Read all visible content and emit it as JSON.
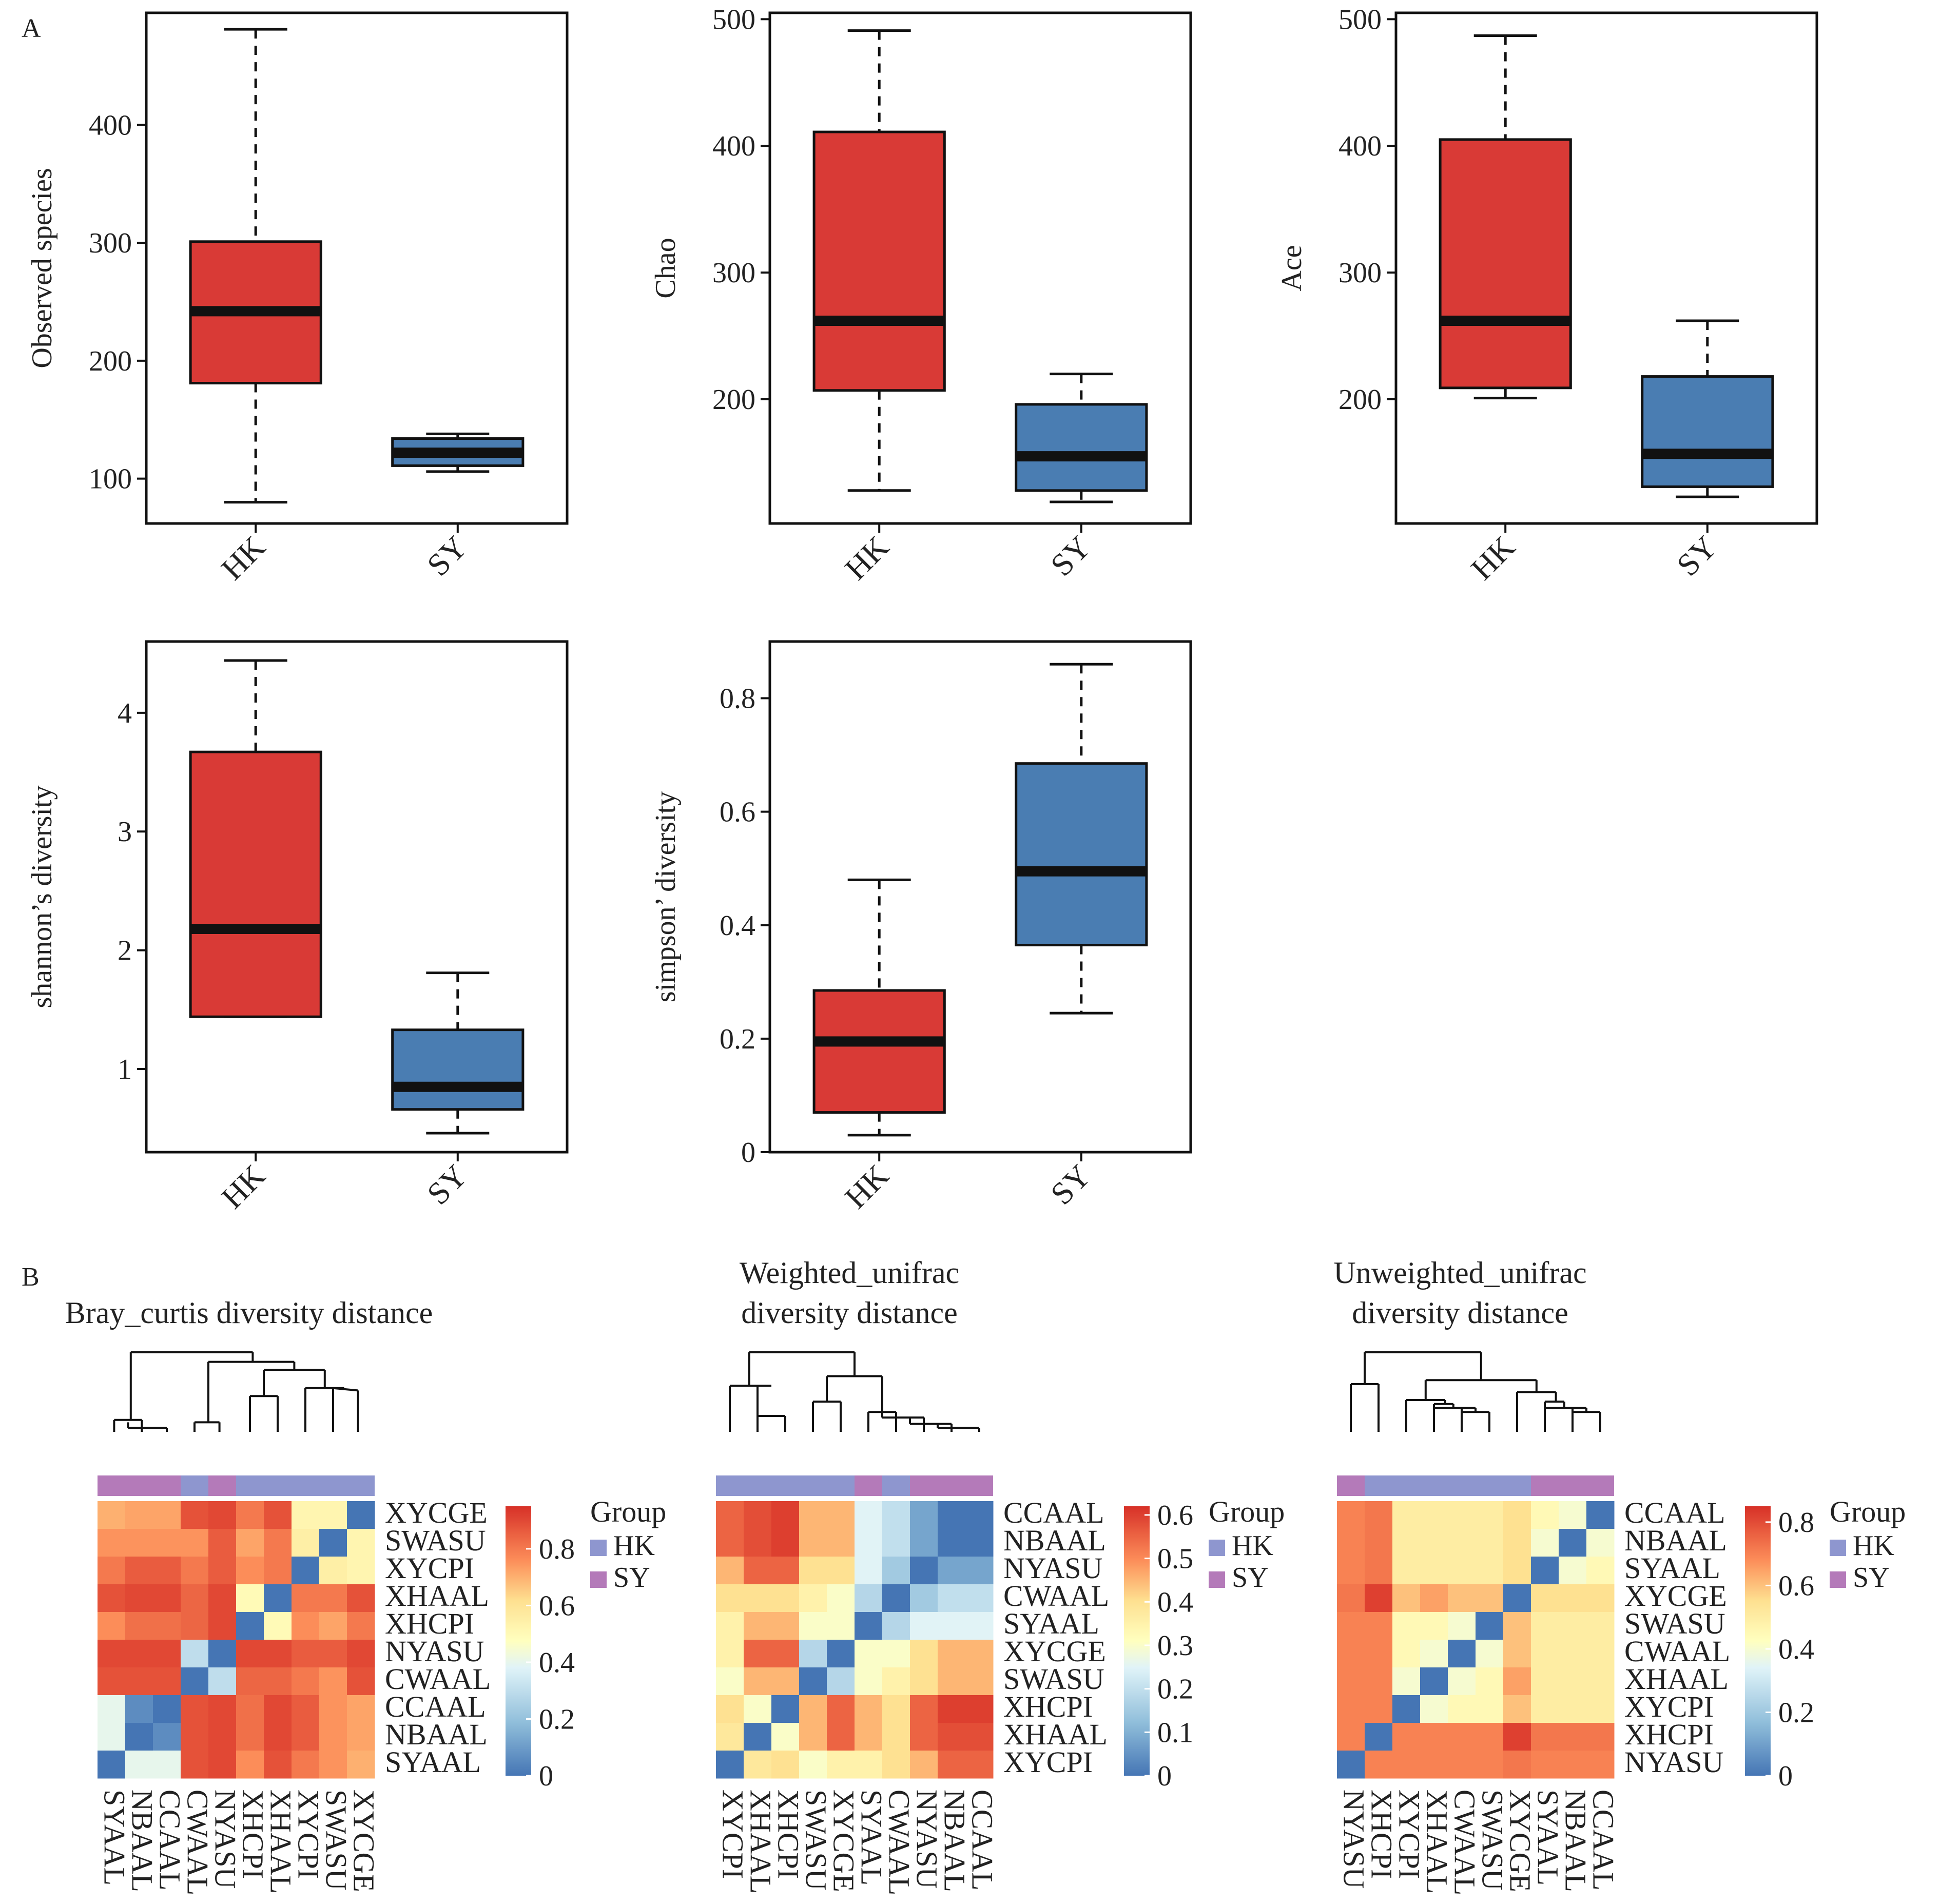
{
  "panels": {
    "A": "A",
    "B": "B"
  },
  "colors": {
    "HK_box": "#d93a36",
    "SY_box": "#4a7db2",
    "group_HK": "#8e96cf",
    "group_SY": "#b47ab9",
    "heat_low": "#4575b4",
    "heat_mid": "#ffffbf",
    "heat_high": "#d73027"
  },
  "chart_data": [
    {
      "type": "box",
      "ylabel": "Observed species",
      "categories": [
        "HK",
        "SY"
      ],
      "yticks": [
        100,
        200,
        300,
        400
      ],
      "ylim": [
        62,
        495
      ],
      "boxes": [
        {
          "group": "HK",
          "min": 80,
          "q1": 181,
          "median": 242,
          "q3": 301,
          "max": 481
        },
        {
          "group": "SY",
          "min": 106,
          "q1": 111,
          "median": 122,
          "q3": 134,
          "max": 138
        }
      ]
    },
    {
      "type": "box",
      "ylabel": "Chao",
      "categories": [
        "HK",
        "SY"
      ],
      "yticks": [
        200,
        300,
        400,
        500
      ],
      "ylim": [
        102,
        505
      ],
      "boxes": [
        {
          "group": "HK",
          "min": 128,
          "q1": 207,
          "median": 262,
          "q3": 411,
          "max": 491
        },
        {
          "group": "SY",
          "min": 119,
          "q1": 128,
          "median": 155,
          "q3": 196,
          "max": 220
        }
      ]
    },
    {
      "type": "box",
      "ylabel": "Ace",
      "categories": [
        "HK",
        "SY"
      ],
      "yticks": [
        200,
        300,
        400,
        500
      ],
      "ylim": [
        102,
        505
      ],
      "boxes": [
        {
          "group": "HK",
          "min": 201,
          "q1": 209,
          "median": 262,
          "q3": 405,
          "max": 487
        },
        {
          "group": "SY",
          "min": 123,
          "q1": 131,
          "median": 157,
          "q3": 218,
          "max": 262
        }
      ]
    },
    {
      "type": "box",
      "ylabel": "shannon’s diversity",
      "categories": [
        "HK",
        "SY"
      ],
      "yticks": [
        1,
        2,
        3,
        4
      ],
      "ylim": [
        0.3,
        4.6
      ],
      "boxes": [
        {
          "group": "HK",
          "min": 1.44,
          "q1": 1.44,
          "median": 2.18,
          "q3": 3.67,
          "max": 4.44
        },
        {
          "group": "SY",
          "min": 0.46,
          "q1": 0.66,
          "median": 0.85,
          "q3": 1.33,
          "max": 1.81
        }
      ]
    },
    {
      "type": "box",
      "ylabel": "simpson’ diversity",
      "categories": [
        "HK",
        "SY"
      ],
      "yticks": [
        0.0,
        0.2,
        0.4,
        0.6,
        0.8
      ],
      "ylim": [
        0.0,
        0.9
      ],
      "boxes": [
        {
          "group": "HK",
          "min": 0.03,
          "q1": 0.07,
          "median": 0.195,
          "q3": 0.285,
          "max": 0.48
        },
        {
          "group": "SY",
          "min": 0.245,
          "q1": 0.365,
          "median": 0.495,
          "q3": 0.685,
          "max": 0.86
        }
      ]
    },
    {
      "type": "heatmap",
      "title": [
        "",
        "Bray_curtis diversity distance"
      ],
      "rows": [
        "XYCGE",
        "SWASU",
        "XYCPI",
        "XHAAL",
        "XHCPI",
        "NYASU",
        "CWAAL",
        "CCAAL",
        "NBAAL",
        "SYAAL"
      ],
      "cols": [
        "SYAAL",
        "NBAAL",
        "CCAAL",
        "CWAAL",
        "NYASU",
        "XHCPI",
        "XHAAL",
        "XYCPI",
        "SWASU",
        "XYCGE"
      ],
      "col_groups": [
        "SY",
        "SY",
        "SY",
        "HK",
        "SY",
        "HK",
        "HK",
        "HK",
        "HK",
        "HK"
      ],
      "vmax": 0.95,
      "colorbar_ticks": [
        0,
        0.2,
        0.4,
        0.6,
        0.8
      ],
      "legend_title": "Group",
      "legend_entries": [
        "HK",
        "SY"
      ],
      "values": [
        [
          0.7,
          0.72,
          0.72,
          0.88,
          0.9,
          0.8,
          0.88,
          0.52,
          0.52,
          0.0
        ],
        [
          0.75,
          0.75,
          0.75,
          0.75,
          0.86,
          0.72,
          0.8,
          0.55,
          0.0,
          0.52
        ],
        [
          0.8,
          0.86,
          0.86,
          0.8,
          0.86,
          0.76,
          0.8,
          0.0,
          0.55,
          0.52
        ],
        [
          0.88,
          0.9,
          0.9,
          0.84,
          0.9,
          0.5,
          0.0,
          0.8,
          0.8,
          0.88
        ],
        [
          0.76,
          0.82,
          0.82,
          0.84,
          0.9,
          0.0,
          0.5,
          0.76,
          0.72,
          0.8
        ],
        [
          0.9,
          0.9,
          0.9,
          0.3,
          0.0,
          0.9,
          0.9,
          0.86,
          0.86,
          0.9
        ],
        [
          0.88,
          0.88,
          0.88,
          0.0,
          0.3,
          0.84,
          0.84,
          0.8,
          0.75,
          0.88
        ],
        [
          0.4,
          0.06,
          0.0,
          0.88,
          0.9,
          0.82,
          0.9,
          0.86,
          0.75,
          0.72
        ],
        [
          0.4,
          0.0,
          0.06,
          0.88,
          0.9,
          0.82,
          0.9,
          0.86,
          0.75,
          0.72
        ],
        [
          0.0,
          0.4,
          0.4,
          0.88,
          0.9,
          0.76,
          0.88,
          0.8,
          0.75,
          0.7
        ]
      ]
    },
    {
      "type": "heatmap",
      "title": [
        "Weighted_unifrac",
        "diversity distance"
      ],
      "rows": [
        "CCAAL",
        "NBAAL",
        "NYASU",
        "CWAAL",
        "SYAAL",
        "XYCGE",
        "SWASU",
        "XHCPI",
        "XHAAL",
        "XYCPI"
      ],
      "cols": [
        "XYCPI",
        "XHAAL",
        "XHCPI",
        "SWASU",
        "XYCGE",
        "SYAAL",
        "CWAAL",
        "NYASU",
        "NBAAL",
        "CCAAL"
      ],
      "col_groups": [
        "HK",
        "HK",
        "HK",
        "HK",
        "HK",
        "SY",
        "HK",
        "SY",
        "SY",
        "SY"
      ],
      "vmax": 0.62,
      "colorbar_ticks": [
        0,
        0.1,
        0.2,
        0.3,
        0.4,
        0.5,
        0.6
      ],
      "legend_title": "Group",
      "legend_entries": [
        "HK",
        "SY"
      ],
      "values": [
        [
          0.55,
          0.58,
          0.6,
          0.45,
          0.45,
          0.25,
          0.2,
          0.08,
          0.0,
          0.0
        ],
        [
          0.55,
          0.58,
          0.6,
          0.45,
          0.45,
          0.25,
          0.2,
          0.08,
          0.0,
          0.0
        ],
        [
          0.45,
          0.55,
          0.55,
          0.4,
          0.4,
          0.25,
          0.15,
          0.0,
          0.08,
          0.08
        ],
        [
          0.4,
          0.4,
          0.4,
          0.35,
          0.3,
          0.18,
          0.0,
          0.15,
          0.2,
          0.2
        ],
        [
          0.35,
          0.45,
          0.45,
          0.3,
          0.3,
          0.0,
          0.18,
          0.25,
          0.25,
          0.25
        ],
        [
          0.35,
          0.55,
          0.55,
          0.18,
          0.0,
          0.3,
          0.3,
          0.4,
          0.45,
          0.45
        ],
        [
          0.3,
          0.45,
          0.45,
          0.0,
          0.18,
          0.3,
          0.35,
          0.4,
          0.45,
          0.45
        ],
        [
          0.4,
          0.3,
          0.0,
          0.45,
          0.55,
          0.45,
          0.4,
          0.55,
          0.6,
          0.6
        ],
        [
          0.38,
          0.0,
          0.3,
          0.45,
          0.55,
          0.45,
          0.4,
          0.55,
          0.58,
          0.58
        ],
        [
          0.0,
          0.38,
          0.4,
          0.3,
          0.35,
          0.35,
          0.4,
          0.45,
          0.55,
          0.55
        ]
      ]
    },
    {
      "type": "heatmap",
      "title": [
        "Unweighted_unifrac",
        "diversity distance"
      ],
      "rows": [
        "CCAAL",
        "NBAAL",
        "SYAAL",
        "XYCGE",
        "SWASU",
        "CWAAL",
        "XHAAL",
        "XYCPI",
        "XHCPI",
        "NYASU"
      ],
      "cols": [
        "NYASU",
        "XHCPI",
        "XYCPI",
        "XHAAL",
        "CWAAL",
        "SWASU",
        "XYCGE",
        "SYAAL",
        "NBAAL",
        "CCAAL"
      ],
      "col_groups": [
        "SY",
        "HK",
        "HK",
        "HK",
        "HK",
        "HK",
        "HK",
        "SY",
        "SY",
        "SY"
      ],
      "vmax": 0.85,
      "colorbar_ticks": [
        0,
        0.2,
        0.4,
        0.6,
        0.8
      ],
      "legend_title": "Group",
      "legend_entries": [
        "HK",
        "SY"
      ],
      "values": [
        [
          0.7,
          0.72,
          0.5,
          0.5,
          0.5,
          0.5,
          0.55,
          0.45,
          0.4,
          0.0
        ],
        [
          0.7,
          0.72,
          0.5,
          0.5,
          0.5,
          0.5,
          0.55,
          0.4,
          0.0,
          0.4
        ],
        [
          0.7,
          0.72,
          0.5,
          0.5,
          0.5,
          0.5,
          0.55,
          0.0,
          0.4,
          0.45
        ],
        [
          0.72,
          0.82,
          0.6,
          0.65,
          0.6,
          0.6,
          0.0,
          0.55,
          0.55,
          0.55
        ],
        [
          0.7,
          0.7,
          0.45,
          0.45,
          0.4,
          0.0,
          0.6,
          0.5,
          0.5,
          0.5
        ],
        [
          0.7,
          0.7,
          0.45,
          0.4,
          0.0,
          0.4,
          0.6,
          0.5,
          0.5,
          0.5
        ],
        [
          0.7,
          0.7,
          0.4,
          0.0,
          0.4,
          0.45,
          0.65,
          0.5,
          0.5,
          0.5
        ],
        [
          0.7,
          0.7,
          0.0,
          0.4,
          0.45,
          0.45,
          0.6,
          0.5,
          0.5,
          0.5
        ],
        [
          0.7,
          0.0,
          0.7,
          0.7,
          0.7,
          0.7,
          0.82,
          0.72,
          0.72,
          0.72
        ],
        [
          0.0,
          0.7,
          0.7,
          0.7,
          0.7,
          0.7,
          0.72,
          0.7,
          0.7,
          0.7
        ]
      ]
    }
  ]
}
